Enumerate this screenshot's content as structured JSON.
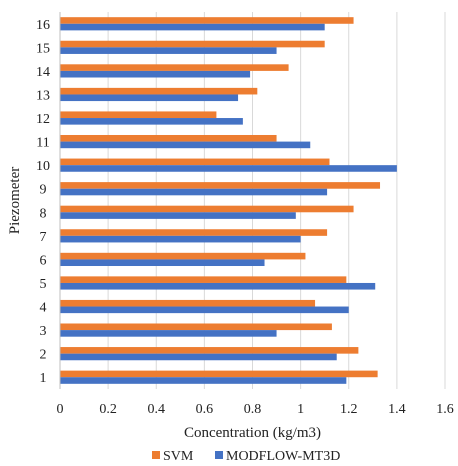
{
  "chart_data": {
    "type": "bar",
    "orientation": "horizontal",
    "categories": [
      "1",
      "2",
      "3",
      "4",
      "5",
      "6",
      "7",
      "8",
      "9",
      "10",
      "11",
      "12",
      "13",
      "14",
      "15",
      "16"
    ],
    "series": [
      {
        "name": "SVM",
        "color": "#ED7D31",
        "values": [
          1.32,
          1.24,
          1.13,
          1.06,
          1.19,
          1.02,
          1.11,
          1.22,
          1.33,
          1.12,
          0.9,
          0.65,
          0.82,
          0.95,
          1.1,
          1.22
        ]
      },
      {
        "name": "MODFLOW-MT3D",
        "color": "#4472C4",
        "values": [
          1.19,
          1.15,
          0.9,
          1.2,
          1.31,
          0.85,
          1.0,
          0.98,
          1.11,
          1.4,
          1.04,
          0.76,
          0.74,
          0.79,
          0.9,
          1.1
        ]
      }
    ],
    "x_ticks": [
      "0",
      "0.2",
      "0.4",
      "0.6",
      "0.8",
      "1",
      "1.2",
      "1.4",
      "1.6"
    ],
    "xlim": [
      0,
      1.6
    ],
    "xlabel": "Concentration (kg/m3)",
    "ylabel": "Piezometer",
    "title": "",
    "grid": "vertical",
    "legend_position": "bottom"
  }
}
